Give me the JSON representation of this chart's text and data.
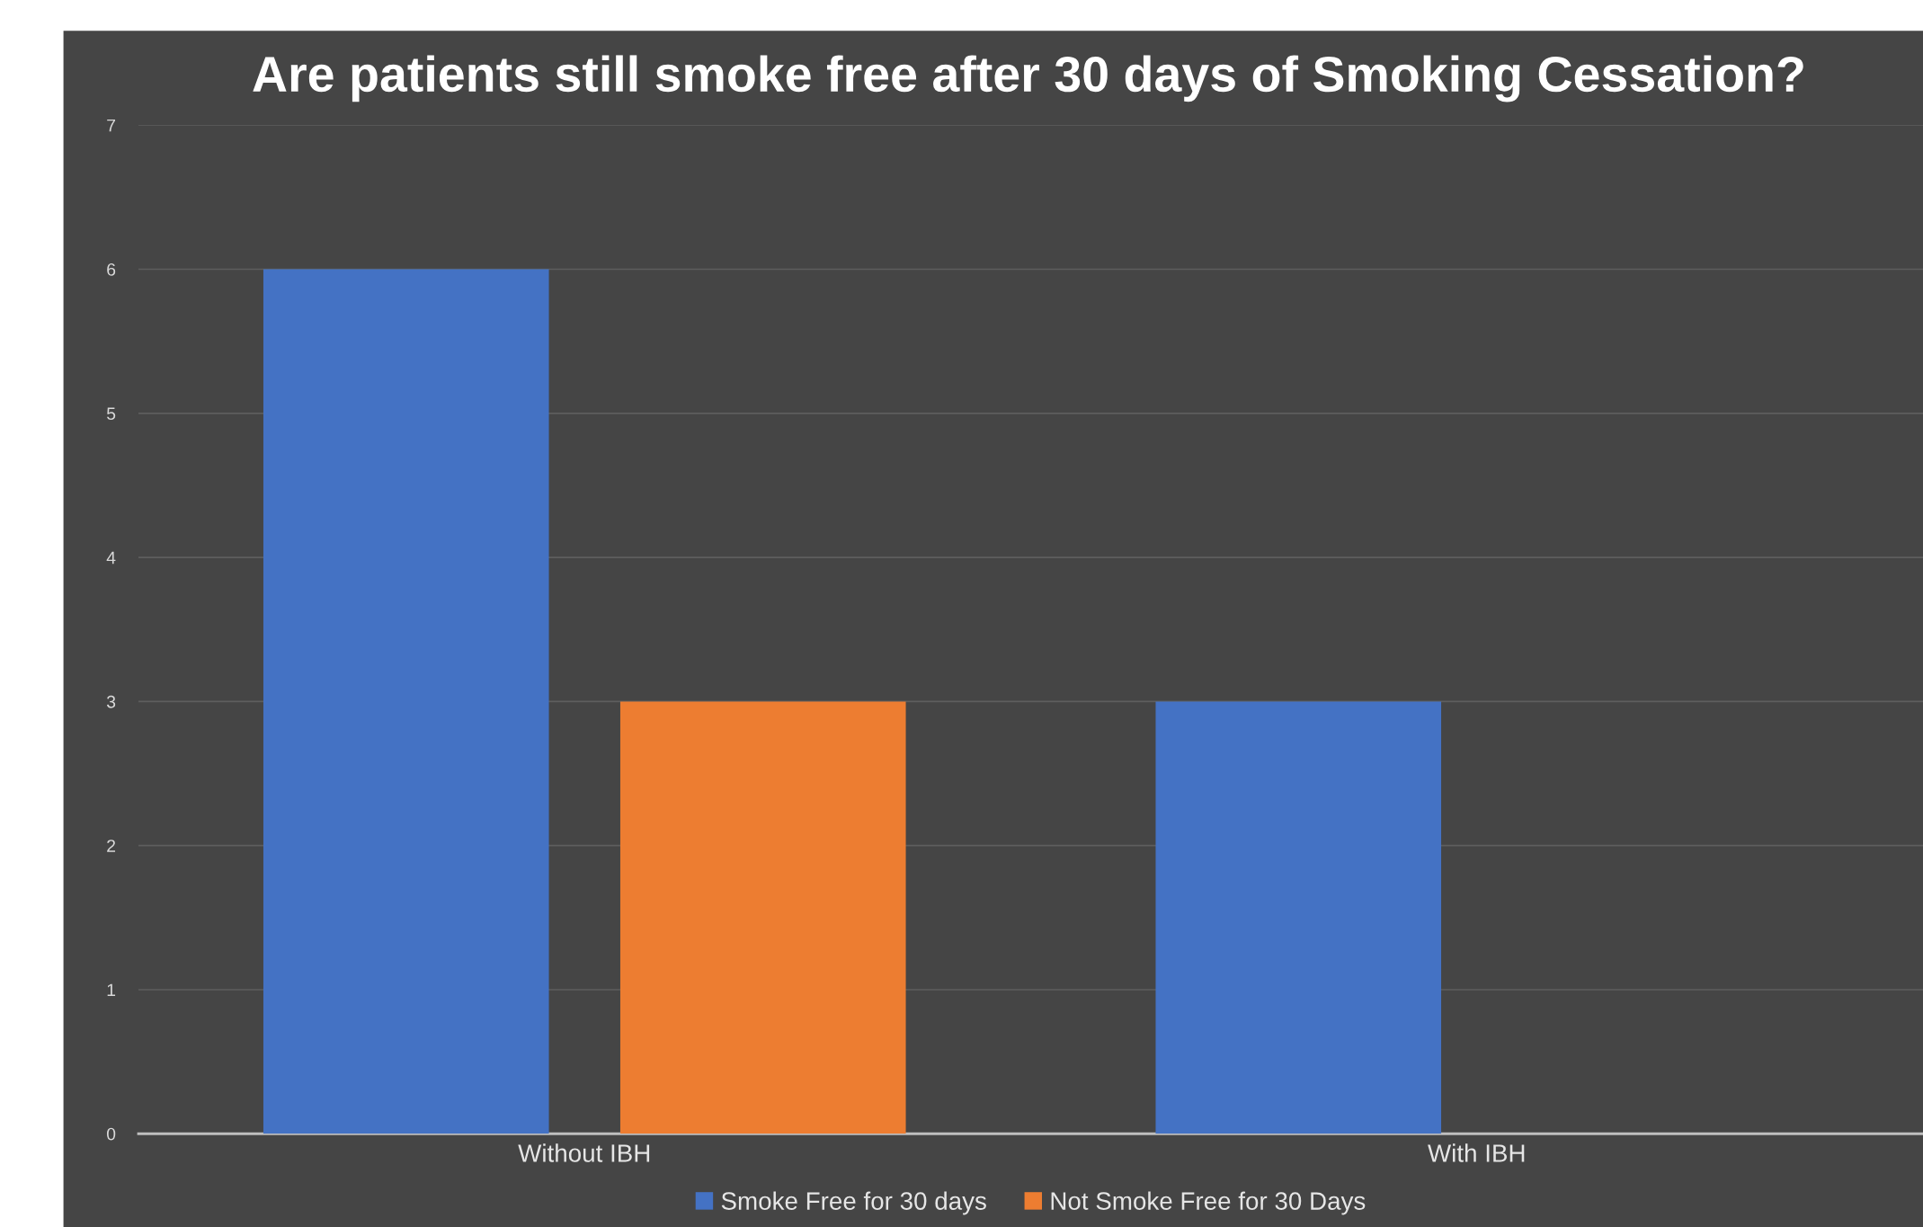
{
  "chart_data": {
    "type": "bar",
    "title": "Are patients still smoke free after 30 days of Smoking Cessation?",
    "categories": [
      "Without IBH",
      "With IBH"
    ],
    "series": [
      {
        "name": "Smoke Free for 30 days",
        "color": "#4472c4",
        "values": [
          6,
          3
        ]
      },
      {
        "name": "Not Smoke Free for 30 Days",
        "color": "#ed7d31",
        "values": [
          3,
          0
        ]
      }
    ],
    "ylim": [
      0,
      7
    ],
    "yticks": [
      0,
      1,
      2,
      3,
      4,
      5,
      6,
      7
    ],
    "grid": "y",
    "legend": "bottom"
  }
}
